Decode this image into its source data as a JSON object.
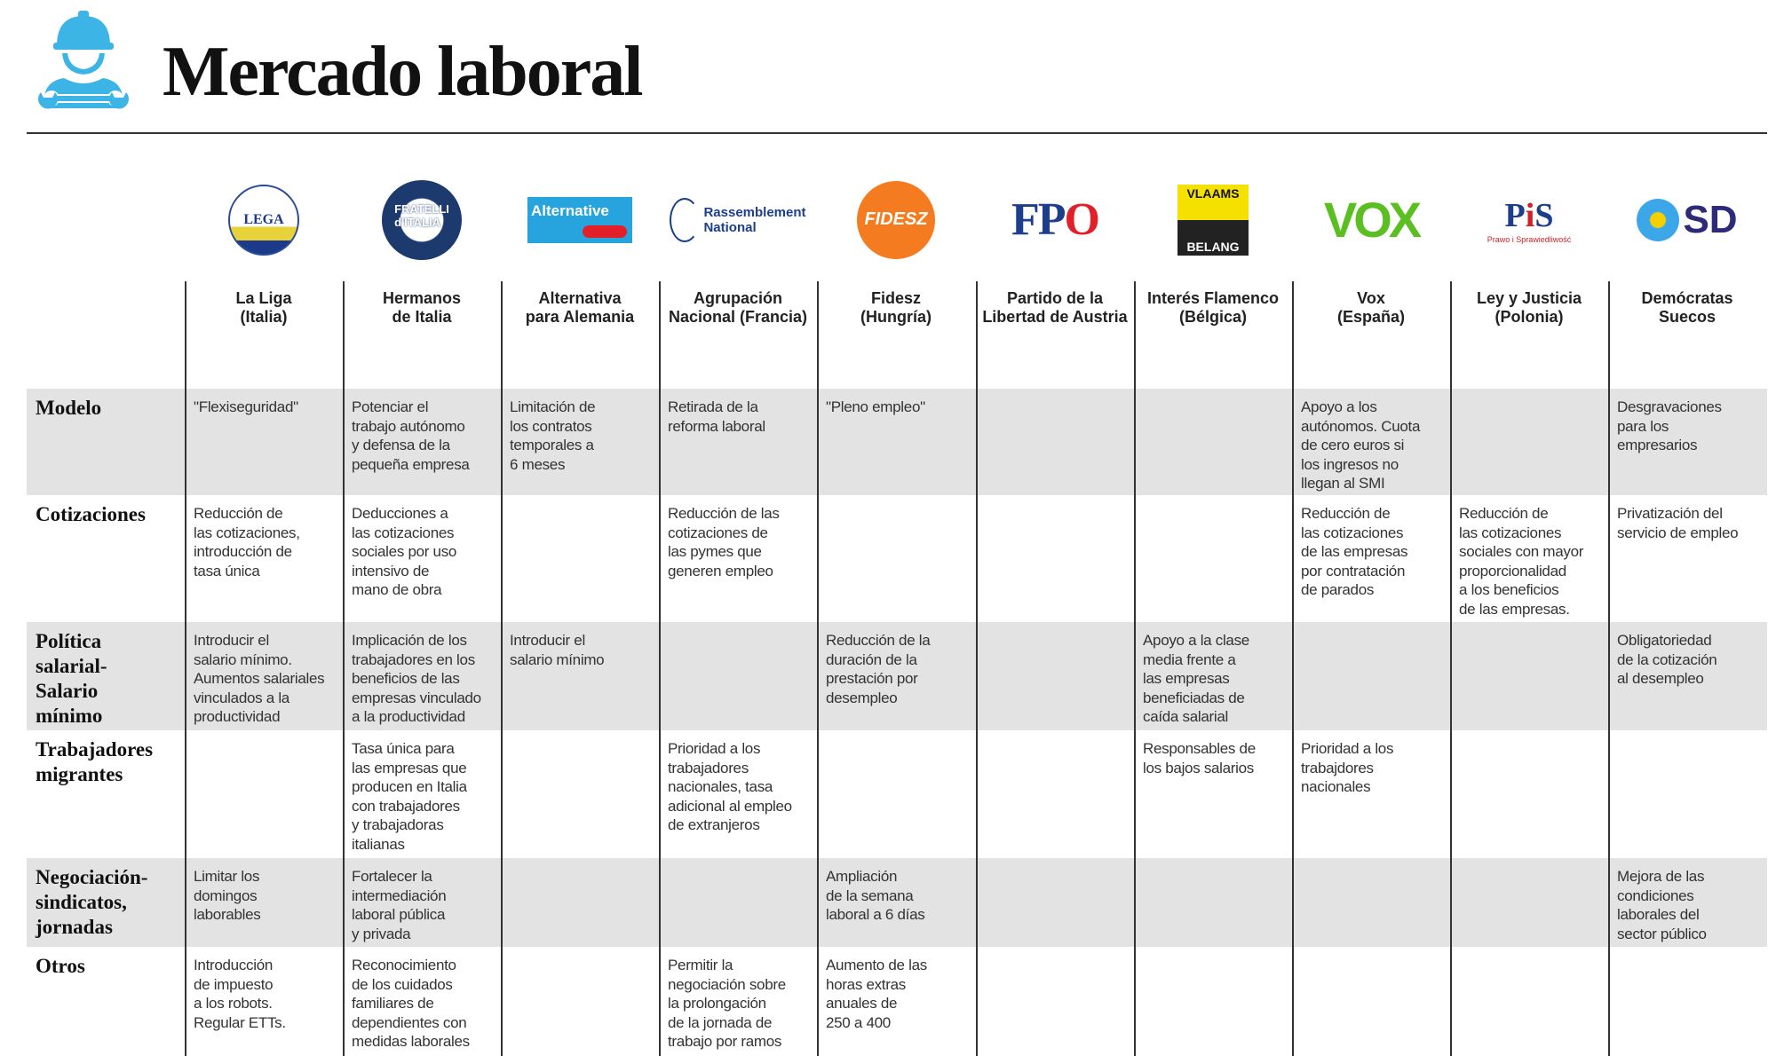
{
  "header": {
    "title": "Mercado laboral",
    "icon": "worker-wrench-icon",
    "accent": "#3cb4e6"
  },
  "columns": [
    {
      "name": "La Liga\n(Italia)",
      "logo": "LEGA SALVINI"
    },
    {
      "name": "Hermanos\nde Italia",
      "logo": "FRATELLI d'ITALIA"
    },
    {
      "name": "Alternativa\npara Alemania",
      "logo": "Alternative für Deutschland"
    },
    {
      "name": "Agrupación\nNacional (Francia)",
      "logo": "Rassemblement National"
    },
    {
      "name": "Fidesz\n(Hungría)",
      "logo": "FIDESZ"
    },
    {
      "name": "Partido de la\nLibertad de Austria",
      "logo": "FPÖ"
    },
    {
      "name": "Interés Flamenco\n(Bélgica)",
      "logo": "VLAAMS BELANG"
    },
    {
      "name": "Vox\n(España)",
      "logo": "VOX"
    },
    {
      "name": "Ley y Justicia\n(Polonia)",
      "logo": "PiS Prawo i Sprawiedliwość"
    },
    {
      "name": "Demócratas\nSuecos",
      "logo": "SD"
    }
  ],
  "rows": [
    {
      "label": "Modelo",
      "cells": [
        "\"Flexiseguridad\"",
        "Potenciar el\ntrabajo autónomo\ny defensa de la\npequeña empresa",
        "Limitación de\nlos contratos\ntemporales a\n6 meses",
        "Retirada de la\nreforma laboral",
        "\"Pleno empleo\"",
        "",
        "",
        "Apoyo a los\nautónomos. Cuota\nde cero euros si\nlos ingresos no\nllegan al SMI",
        "",
        "Desgravaciones\npara los\nempresarios"
      ]
    },
    {
      "label": "Cotizaciones",
      "cells": [
        "Reducción de\nlas cotizaciones,\nintroducción de\ntasa única",
        "Deducciones a\nlas cotizaciones\nsociales por uso\nintensivo de\nmano de obra",
        "",
        "Reducción de las\ncotizaciones de\nlas pymes que\ngeneren empleo",
        "",
        "",
        "",
        "Reducción de\nlas cotizaciones\nde las empresas\npor contratación\nde parados",
        "Reducción de\nlas cotizaciones\nsociales con mayor\nproporcionalidad\na los beneficios\nde las empresas.",
        "Privatización del\nservicio de empleo"
      ]
    },
    {
      "label": "Política\nsalarial-\nSalario\nmínimo",
      "cells": [
        "Introducir el\nsalario mínimo.\nAumentos salariales\nvinculados a la\nproductividad",
        "Implicación de los\ntrabajadores en los\nbeneficios de las\nempresas vinculado\na la productividad",
        "Introducir el\nsalario mínimo",
        "",
        "Reducción de la\nduración de la\nprestación por\ndesempleo",
        "",
        "Apoyo a la clase\nmedia frente a\nlas empresas\nbeneficiadas de\ncaída salarial",
        "",
        "",
        "Obligatoriedad\nde la cotización\nal desempleo"
      ]
    },
    {
      "label": "Trabajadores\nmigrantes",
      "cells": [
        "",
        "Tasa única para\nlas empresas que\nproducen en Italia\ncon trabajadores\ny trabajadoras\nitalianas",
        "",
        "Prioridad a los\ntrabajadores\nnacionales, tasa\nadicional al empleo\nde extranjeros",
        "",
        "",
        "Responsables de\nlos bajos salarios",
        "Prioridad a los\ntrabajdores\nnacionales",
        "",
        ""
      ]
    },
    {
      "label": "Negociación-\nsindicatos,\njornadas",
      "cells": [
        "Limitar los\ndomingos\nlaborables",
        "Fortalecer la\nintermediación\nlaboral pública\ny privada",
        "",
        "",
        "Ampliación\nde la semana\nlaboral a 6 días",
        "",
        "",
        "",
        "",
        "Mejora de las\ncondiciones\nlaborales del\nsector público"
      ]
    },
    {
      "label": "Otros",
      "cells": [
        "Introducción\nde impuesto\na los robots.\nRegular ETTs.",
        "Reconocimiento\nde los cuidados\nfamiliares de\ndependientes con\nmedidas laborales",
        "",
        "Permitir la\nnegociación sobre\nla prolongación\nde la jornada de\ntrabajo por ramos",
        "Aumento de las\nhoras extras\nanuales de\n250 a 400",
        "",
        "",
        "",
        "",
        ""
      ]
    }
  ]
}
